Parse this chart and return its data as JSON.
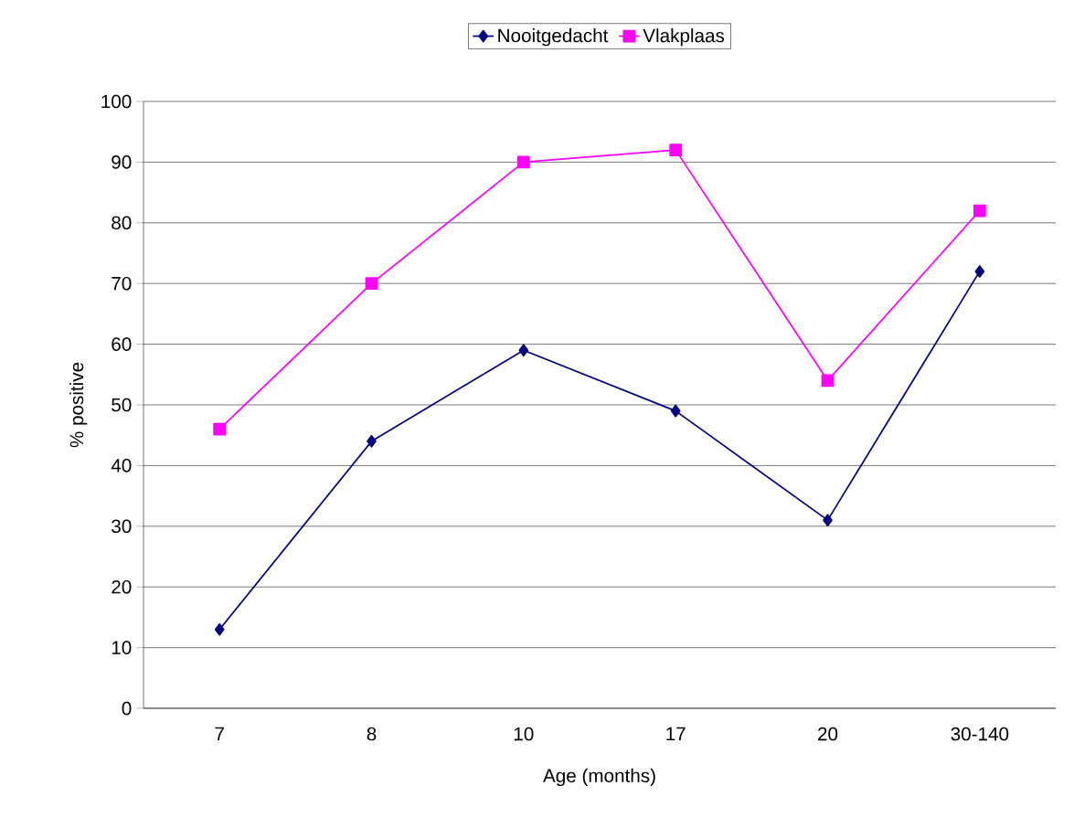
{
  "chart_data": {
    "type": "line",
    "xlabel": "Age (months)",
    "ylabel": "% positive",
    "categories": [
      "7",
      "8",
      "10",
      "17",
      "20",
      "30-140"
    ],
    "series": [
      {
        "name": "Nooitgedacht",
        "color": "#000080",
        "marker": "diamond",
        "values": [
          13,
          44,
          59,
          49,
          31,
          72
        ]
      },
      {
        "name": "Vlakplaas",
        "color": "#ff00ff",
        "marker": "square",
        "values": [
          46,
          70,
          90,
          92,
          54,
          82
        ]
      }
    ],
    "ylim": [
      0,
      100
    ],
    "yticks": [
      0,
      10,
      20,
      30,
      40,
      50,
      60,
      70,
      80,
      90,
      100
    ],
    "grid": "y",
    "legend": "top"
  }
}
